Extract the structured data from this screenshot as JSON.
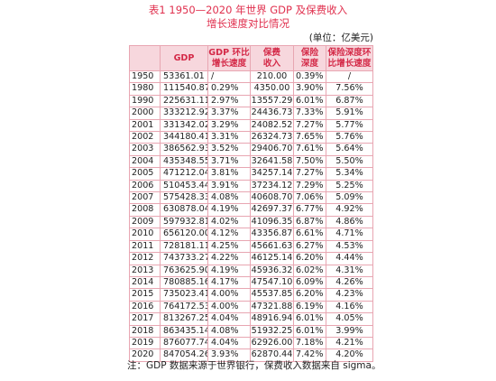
{
  "title_line1": "表1 1950—2020 年世界 GDP 及保费收入",
  "title_line2": "增长速度对比情况",
  "unit": "(单位：亿美元)",
  "columns": [
    {
      "line1": "",
      "line2": ""
    },
    {
      "line1": "GDP",
      "line2": ""
    },
    {
      "line1": "GDP 环比",
      "line2": "增长速度"
    },
    {
      "line1": "保费",
      "line2": "收入"
    },
    {
      "line1": "保险",
      "line2": "深度"
    },
    {
      "line1": "保险深度环",
      "line2": "比增长速度"
    }
  ],
  "rows": [
    [
      "1950",
      "53361.01",
      "/",
      "210.00",
      "0.39%",
      "/"
    ],
    [
      "1980",
      "111540.87",
      "0.29%",
      "4350.00",
      "3.90%",
      "7.56%"
    ],
    [
      "1990",
      "225631.11",
      "2.97%",
      "13557.29",
      "6.01%",
      "6.87%"
    ],
    [
      "2000",
      "333212.92",
      "3.37%",
      "24436.73",
      "7.33%",
      "5.91%"
    ],
    [
      "2001",
      "331342.02",
      "3.29%",
      "24082.52",
      "7.27%",
      "5.77%"
    ],
    [
      "2002",
      "344180.41",
      "3.31%",
      "26324.73",
      "7.65%",
      "5.76%"
    ],
    [
      "2003",
      "386562.93",
      "3.52%",
      "29406.70",
      "7.61%",
      "5.64%"
    ],
    [
      "2004",
      "435348.55",
      "3.71%",
      "32641.58",
      "7.50%",
      "5.50%"
    ],
    [
      "2005",
      "471212.04",
      "3.81%",
      "34257.14",
      "7.27%",
      "5.34%"
    ],
    [
      "2006",
      "510453.44",
      "3.91%",
      "37234.12",
      "7.29%",
      "5.25%"
    ],
    [
      "2007",
      "575428.33",
      "4.08%",
      "40608.70",
      "7.06%",
      "5.09%"
    ],
    [
      "2008",
      "630878.04",
      "4.19%",
      "42697.37",
      "6.77%",
      "4.92%"
    ],
    [
      "2009",
      "597932.81",
      "4.02%",
      "41096.35",
      "6.87%",
      "4.86%"
    ],
    [
      "2010",
      "656120.00",
      "4.12%",
      "43356.87",
      "6.61%",
      "4.71%"
    ],
    [
      "2011",
      "728181.11",
      "4.25%",
      "45661.63",
      "6.27%",
      "4.53%"
    ],
    [
      "2012",
      "743733.27",
      "4.22%",
      "46125.14",
      "6.20%",
      "4.44%"
    ],
    [
      "2013",
      "763625.90",
      "4.19%",
      "45936.32",
      "6.02%",
      "4.31%"
    ],
    [
      "2014",
      "780885.16",
      "4.17%",
      "47547.10",
      "6.09%",
      "4.26%"
    ],
    [
      "2015",
      "735023.41",
      "4.00%",
      "45537.85",
      "6.20%",
      "4.23%"
    ],
    [
      "2016",
      "764172.53",
      "4.00%",
      "47321.88",
      "6.19%",
      "4.16%"
    ],
    [
      "2017",
      "813267.25",
      "4.04%",
      "48916.94",
      "6.01%",
      "4.05%"
    ],
    [
      "2018",
      "863435.14",
      "4.08%",
      "51932.25",
      "6.01%",
      "3.99%"
    ],
    [
      "2019",
      "876077.74",
      "4.04%",
      "62926.00",
      "7.18%",
      "4.21%"
    ],
    [
      "2020",
      "847054.26",
      "3.93%",
      "62870.44",
      "7.42%",
      "4.20%"
    ]
  ],
  "note": "注：GDP 数据来源于世界银行，保费收入数据来自 sigma。"
}
